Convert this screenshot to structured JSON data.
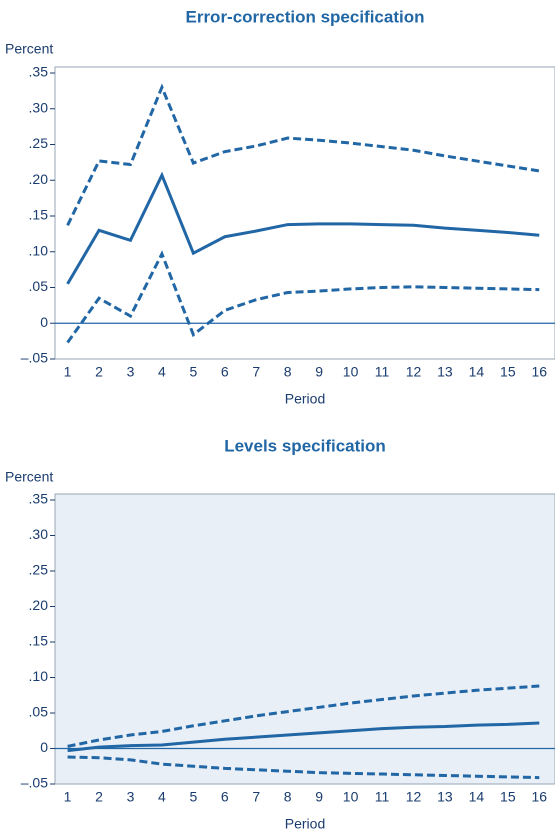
{
  "chart_data": [
    {
      "type": "line",
      "title": "Error-correction specification",
      "ylabel": "Percent",
      "xlabel": "Period",
      "background": "#ffffff",
      "x": [
        1,
        2,
        3,
        4,
        5,
        6,
        7,
        8,
        9,
        10,
        11,
        12,
        13,
        14,
        15,
        16
      ],
      "xlim": [
        0.6,
        16.5
      ],
      "ylim": [
        -0.05,
        0.35
      ],
      "yticks": [
        {
          "value": -0.05,
          "label": "–.05"
        },
        0,
        {
          "value": 0.05,
          "label": ".05"
        },
        {
          "value": 0.1,
          "label": ".10"
        },
        {
          "value": 0.15,
          "label": ".15"
        },
        {
          "value": 0.2,
          "label": ".20"
        },
        {
          "value": 0.25,
          "label": ".25"
        },
        {
          "value": 0.3,
          "label": ".30"
        },
        {
          "value": 0.35,
          "label": ".35"
        }
      ],
      "zero_line": true,
      "series": [
        {
          "color": "#2166a5",
          "dash": false,
          "values": [
            0.055,
            0.13,
            0.116,
            0.207,
            0.098,
            0.121,
            0.129,
            0.138,
            0.139,
            0.139,
            0.138,
            0.137,
            0.133,
            0.13,
            0.127,
            0.123
          ]
        },
        {
          "color": "#2166a5",
          "dash": true,
          "values": [
            0.137,
            0.227,
            0.222,
            0.33,
            0.224,
            0.24,
            0.248,
            0.259,
            0.256,
            0.252,
            0.247,
            0.242,
            0.234,
            0.227,
            0.22,
            0.213
          ]
        },
        {
          "color": "#2166a5",
          "dash": true,
          "values": [
            -0.027,
            0.035,
            0.01,
            0.097,
            -0.016,
            0.018,
            0.033,
            0.043,
            0.045,
            0.048,
            0.05,
            0.051,
            0.05,
            0.049,
            0.048,
            0.047
          ]
        }
      ]
    },
    {
      "type": "line",
      "title": "Levels specification",
      "ylabel": "Percent",
      "xlabel": "Period",
      "background": "#e9eff7",
      "x": [
        1,
        2,
        3,
        4,
        5,
        6,
        7,
        8,
        9,
        10,
        11,
        12,
        13,
        14,
        15,
        16
      ],
      "xlim": [
        0.6,
        16.5
      ],
      "ylim": [
        -0.05,
        0.35
      ],
      "yticks": [
        {
          "value": -0.05,
          "label": "–.05"
        },
        0,
        {
          "value": 0.05,
          "label": ".05"
        },
        {
          "value": 0.1,
          "label": ".10"
        },
        {
          "value": 0.15,
          "label": ".15"
        },
        {
          "value": 0.2,
          "label": ".20"
        },
        {
          "value": 0.25,
          "label": ".25"
        },
        {
          "value": 0.3,
          "label": ".30"
        },
        {
          "value": 0.35,
          "label": ".35"
        }
      ],
      "zero_line": true,
      "series": [
        {
          "color": "#2166a5",
          "dash": false,
          "values": [
            -0.003,
            0.002,
            0.004,
            0.005,
            0.009,
            0.013,
            0.016,
            0.019,
            0.022,
            0.025,
            0.028,
            0.03,
            0.031,
            0.033,
            0.034,
            0.036
          ]
        },
        {
          "color": "#2166a5",
          "dash": true,
          "values": [
            0.003,
            0.012,
            0.019,
            0.024,
            0.032,
            0.039,
            0.046,
            0.052,
            0.058,
            0.064,
            0.069,
            0.074,
            0.078,
            0.082,
            0.085,
            0.088
          ]
        },
        {
          "color": "#2166a5",
          "dash": true,
          "values": [
            -0.012,
            -0.013,
            -0.016,
            -0.022,
            -0.025,
            -0.028,
            -0.03,
            -0.032,
            -0.034,
            -0.035,
            -0.036,
            -0.037,
            -0.038,
            -0.039,
            -0.04,
            -0.041
          ]
        }
      ]
    }
  ]
}
